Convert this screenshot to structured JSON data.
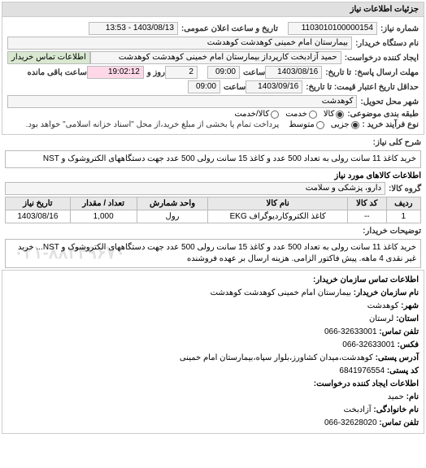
{
  "header": {
    "title": "جزئیات اطلاعات نیاز"
  },
  "fields": {
    "need_no_label": "شماره نیاز:",
    "need_no": "1103010100000154",
    "announce_label": "تاریخ و ساعت اعلان عمومی:",
    "announce": "1403/08/13 - 13:53",
    "buyer_device_label": "نام دستگاه خریدار:",
    "buyer_device": "بیمارستان امام خمینی کوهدشت کوهدشت",
    "creator_label": "ایجاد کننده درخواست:",
    "creator": "حمید آزادبخت کارپرداز بیمارستان امام خمینی کوهدشت کوهدشت",
    "contact_btn": "اطلاعات تماس خریدار",
    "deadline_label": "مهلت ارسال پاسخ:",
    "until_label": "تا تاریخ:",
    "deadline_date": "1403/08/16",
    "time_label": "ساعت",
    "deadline_time": "09:00",
    "days_label": "روز و",
    "days": "2",
    "remain_time": "19:02:12",
    "remain_label": "ساعت باقی مانده",
    "validity_label": "حداقل تاریخ اعتبار قیمت: تا تاریخ:",
    "validity_date": "1403/09/16",
    "validity_time": "09:00",
    "delivery_city_label": "شهر محل تحویل:",
    "delivery_city": "کوهدشت",
    "subject_label": "طبقه بندی موضوعی:",
    "radio_goods": "کالا",
    "radio_service": "خدمت",
    "radio_both": "کالا/خدمت",
    "buy_process_label": "نوع فرآیند خرید :",
    "radio_minor": "جزیی",
    "radio_medium": "متوسط",
    "pay_note": "پرداخت تمام یا بخشی از مبلغ خرید،از محل \"اسناد خزانه اسلامی\" خواهد بود.",
    "need_desc_label": "شرح کلی نیاز:",
    "need_desc": "خرید کاغذ 11 سانت رولی به تعداد 500 عدد و کاغذ 15 سانت رولی 500 عدد جهت دستگاههای الکتروشوک و NST",
    "goods_info_label": "اطلاعات کالاهای مورد نیاز",
    "goods_group_label": "گروه کالا:",
    "goods_group": "دارو، پزشکی و سلامت",
    "buyer_note_label": "توضیحات خریدار:",
    "buyer_note": "خرید کاغذ 11 سانت رولی به تعداد 500 عدد و کاغذ 15 سانت رولی 500 عدد جهت دستگاههای الکتروشوک و NST... خرید غیر نقدی 4 ماهه. پیش فاکتور الزامی. هزینه ارسال بر عهده فروشنده"
  },
  "table": {
    "columns": [
      "ردیف",
      "کد کالا",
      "نام کالا",
      "واحد شمارش",
      "تعداد / مقدار",
      "تاریخ نیاز"
    ],
    "rows": [
      [
        "1",
        "--",
        "کاغذ الکتروکاردیوگراف EKG",
        "رول",
        "1,000",
        "1403/08/16"
      ]
    ]
  },
  "contact": {
    "org_header": "اطلاعات تماس سازمان خریدار:",
    "org_name_label": "نام سازمان خریدار:",
    "org_name": "بیمارستان امام خمینی کوهدشت کوهدشت",
    "city_label": "شهر:",
    "city": "کوهدشت",
    "province_label": "استان:",
    "province": "لرستان",
    "phone_label": "تلفن تماس:",
    "phone": "32633001-066",
    "fax_label": "فکس:",
    "fax": "32633001-066",
    "addr_label": "آدرس پستی:",
    "addr": "کوهدشت،میدان کشاورز،بلوار سپاه،بیمارستان امام خمینی",
    "postal_label": "کد پستی:",
    "postal": "6841976554",
    "requester_header": "اطلاعات ایجاد کننده درخواست:",
    "name_label": "نام:",
    "name": "حمید",
    "lname_label": "نام خانوادگی:",
    "lname": "آزادبخت",
    "req_phone_label": "تلفن تماس:",
    "req_phone": "32628020-066"
  },
  "watermark": "۰۲۱-۸۸۳۴۹۶۷۰"
}
